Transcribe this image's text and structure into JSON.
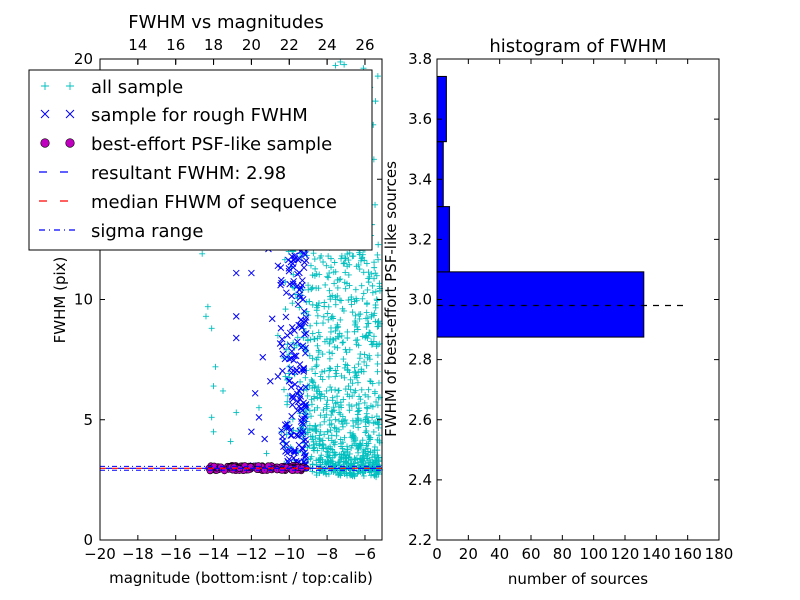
{
  "chart_data": [
    {
      "type": "scatter",
      "title": "FWHM vs magnitudes",
      "xlabel": "magnitude (bottom:isnt / top:calib)",
      "ylabel": "FWHM (pix)",
      "xlim": [
        -20,
        -5.1
      ],
      "ylim": [
        0,
        20
      ],
      "xticks": [
        -20,
        -18,
        -16,
        -14,
        -12,
        -10,
        -8,
        -6
      ],
      "xtick_labels": [
        "−20",
        "−18",
        "−16",
        "−14",
        "−12",
        "−10",
        "−8",
        "−6"
      ],
      "yticks": [
        0,
        5,
        10,
        15,
        20
      ],
      "ytick_labels": [
        "0",
        "5",
        "10",
        "15",
        "20"
      ],
      "top_xaxis": {
        "ticks_calib": [
          14,
          16,
          18,
          20,
          22,
          24,
          26
        ],
        "labels": [
          "14",
          "16",
          "18",
          "20",
          "22",
          "24",
          "26"
        ],
        "calib_minus_isnt": 32
      },
      "legend": {
        "placement": "top-left",
        "entries": [
          {
            "label": "all sample",
            "marker": "+",
            "color": "#00bfbf"
          },
          {
            "label": "sample for rough FWHM",
            "marker": "x",
            "color": "#0000ff"
          },
          {
            "label": "best-effort PSF-like sample",
            "marker": "o",
            "color": "#bf00bf"
          },
          {
            "label": "resultant FWHM: 2.98",
            "linestyle": "dashed",
            "color": "#0000ff"
          },
          {
            "label": "median FHWM of sequence",
            "linestyle": "dashed",
            "color": "#ff0000"
          },
          {
            "label": "sigma range",
            "linestyle": "dashdot",
            "color": "#0000ff"
          }
        ]
      },
      "reference_lines": {
        "resultant_fwhm": 2.98,
        "median_fwhm": 2.98,
        "sigma_range": [
          2.9,
          3.06
        ]
      },
      "series": [
        {
          "name": "all sample",
          "marker": "+",
          "color": "#00bfbf",
          "points": [
            [
              -14.6,
              11.9
            ],
            [
              -14.3,
              9.7
            ],
            [
              -14.1,
              8.8
            ],
            [
              -14.4,
              9.3
            ],
            [
              -13.9,
              7.2
            ],
            [
              -14.0,
              6.4
            ],
            [
              -14.1,
              5.1
            ],
            [
              -14.0,
              4.5
            ],
            [
              -13.5,
              6.2
            ],
            [
              -13.1,
              4.1
            ],
            [
              -12.8,
              5.3
            ],
            [
              -11.6,
              5.5
            ],
            [
              -11.2,
              3.6
            ],
            [
              -10.6,
              8.5
            ],
            [
              -10.4,
              4.5
            ],
            [
              -10.0,
              7.2
            ],
            [
              -9.8,
              10.5
            ],
            [
              -9.6,
              8.1
            ],
            [
              -9.4,
              17.0
            ]
          ],
          "dense_clusters": [
            {
              "x_range": [
                -9.3,
                -5.2
              ],
              "y_range": [
                2.4,
                20
              ],
              "peak_x": -7.8,
              "count": 900
            },
            {
              "x_range": [
                -10.3,
                -9.0
              ],
              "y_range": [
                3.0,
                15.0
              ],
              "peak_x": -9.5,
              "count": 90
            }
          ]
        },
        {
          "name": "sample for rough FWHM",
          "marker": "x",
          "color": "#0000ff",
          "points": [
            [
              -14.0,
              3.0
            ],
            [
              -13.2,
              3.05
            ],
            [
              -12.4,
              2.95
            ],
            [
              -11.9,
              3.1
            ],
            [
              -12.0,
              11.1
            ],
            [
              -11.6,
              12.4
            ],
            [
              -11.1,
              12.1
            ],
            [
              -12.8,
              11.1
            ],
            [
              -12.8,
              9.3
            ],
            [
              -12.8,
              8.4
            ],
            [
              -11.8,
              6.1
            ],
            [
              -11.4,
              7.6
            ],
            [
              -11.0,
              6.6
            ],
            [
              -12.0,
              4.5
            ],
            [
              -11.6,
              5.1
            ],
            [
              -10.6,
              6.8
            ],
            [
              -10.9,
              9.2
            ],
            [
              -10.8,
              12.5
            ],
            [
              -11.3,
              4.2
            ],
            [
              -10.2,
              15.8
            ],
            [
              -10.0,
              14.5
            ],
            [
              -10.6,
              11.4
            ]
          ],
          "dense_clusters": [
            {
              "x_range": [
                -10.5,
                -9.1
              ],
              "y_range": [
                2.9,
                17.0
              ],
              "count": 220
            }
          ]
        },
        {
          "name": "best-effort PSF-like sample",
          "marker": "o",
          "color": "#bf00bf",
          "dense_clusters": [
            {
              "x_range": [
                -14.3,
                -9.1
              ],
              "y_range": [
                2.88,
                3.1
              ],
              "count": 140
            }
          ]
        }
      ]
    },
    {
      "type": "bar",
      "title": "histogram of FWHM",
      "xlabel": "number of sources",
      "ylabel": "FWHM of best-effort PSF-like sources",
      "orientation": "horizontal",
      "xlim": [
        0,
        180
      ],
      "ylim": [
        2.2,
        3.8
      ],
      "xticks": [
        0,
        20,
        40,
        60,
        80,
        100,
        120,
        140,
        160,
        180
      ],
      "yticks": [
        2.2,
        2.4,
        2.6,
        2.8,
        3.0,
        3.2,
        3.4,
        3.6,
        3.8
      ],
      "ytick_labels": [
        "2.2",
        "2.4",
        "2.6",
        "2.8",
        "3.0",
        "3.2",
        "3.4",
        "3.6",
        "3.8"
      ],
      "bar_color": "#0000ff",
      "bins": [
        {
          "range": [
            2.875,
            3.092
          ],
          "count": 132
        },
        {
          "range": [
            3.092,
            3.309
          ],
          "count": 8
        },
        {
          "range": [
            3.309,
            3.525
          ],
          "count": 4
        },
        {
          "range": [
            3.525,
            3.742
          ],
          "count": 6
        }
      ],
      "reference_line": {
        "y": 2.98,
        "x_range": [
          0,
          157
        ],
        "linestyle": "dashed",
        "color": "#000000"
      }
    }
  ]
}
